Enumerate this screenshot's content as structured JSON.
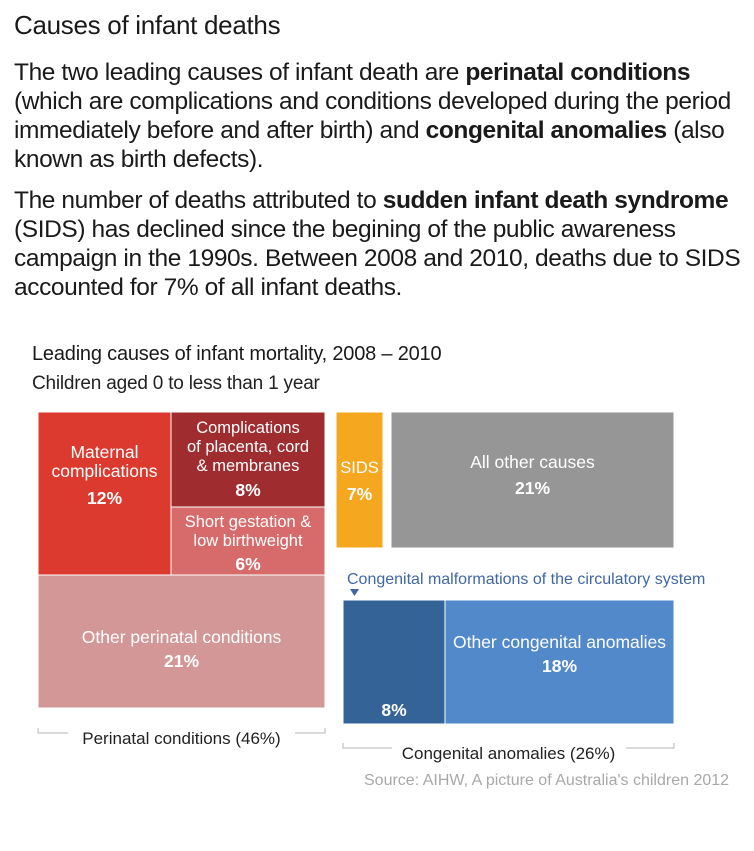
{
  "heading": "Causes of infant deaths",
  "para1": {
    "t1": "The two leading causes of infant death are ",
    "b1": "perinatal conditions",
    "t2": " (which are complications and conditions developed during the period immediately before and after birth) and ",
    "b2": "congenital anomalies",
    "t3": " (also known as birth defects)."
  },
  "para2": {
    "t1": "The number of deaths attributed to ",
    "b1": "sudden infant death syndrome",
    "t2": " (SIDS) has declined since the begining of the public awareness campaign in the 1990s. Between 2008 and 2010, deaths due to SIDS accounted for 7% of all infant deaths."
  },
  "chart_data": {
    "type": "treemap",
    "title": "Leading causes of infant mortality, 2008 – 2010",
    "subtitle": "Children aged 0 to less than 1 year",
    "source": "Source: AIHW, A picture of Australia's children 2012",
    "groups": [
      {
        "label": "Perinatal conditions (46%)",
        "value": 46,
        "items": [
          {
            "key": "maternal",
            "label": [
              "Maternal",
              "complications"
            ],
            "value": 12,
            "value_label": "12%",
            "color": "#dc3a2e"
          },
          {
            "key": "placenta",
            "label": [
              "Complications",
              "of placenta, cord",
              "& membranes"
            ],
            "value": 8,
            "value_label": "8%",
            "color": "#9f2c2f"
          },
          {
            "key": "short",
            "label": [
              "Short gestation &",
              "low birthweight"
            ],
            "value": 6,
            "value_label": "6%",
            "color": "#d76b6b"
          },
          {
            "key": "other_perinatal",
            "label": [
              "Other perinatal conditions"
            ],
            "value": 21,
            "value_label": "21%",
            "color": "#d49797"
          }
        ]
      },
      {
        "label": "",
        "value": 7,
        "items": [
          {
            "key": "sids",
            "label": [
              "SIDS"
            ],
            "value": 7,
            "value_label": "7%",
            "color": "#f4a71f"
          }
        ]
      },
      {
        "label": "",
        "value": 21,
        "items": [
          {
            "key": "other_causes",
            "label": [
              "All other causes"
            ],
            "value": 21,
            "value_label": "21%",
            "color": "#969696"
          }
        ]
      },
      {
        "label": "Congenital anomalies (26%)",
        "value": 26,
        "items": [
          {
            "key": "circulatory",
            "label": [],
            "value": 8,
            "value_label": "8%",
            "color": "#346497",
            "annotation": "Congenital malformations of the circulatory system"
          },
          {
            "key": "other_congenital",
            "label": [
              "Other congenital anomalies"
            ],
            "value": 18,
            "value_label": "18%",
            "color": "#5189cb"
          }
        ]
      }
    ]
  },
  "colors": {
    "annotation": "#3f67a6",
    "bracket": "#b5b5b5",
    "tile_text": "#ffffff"
  }
}
